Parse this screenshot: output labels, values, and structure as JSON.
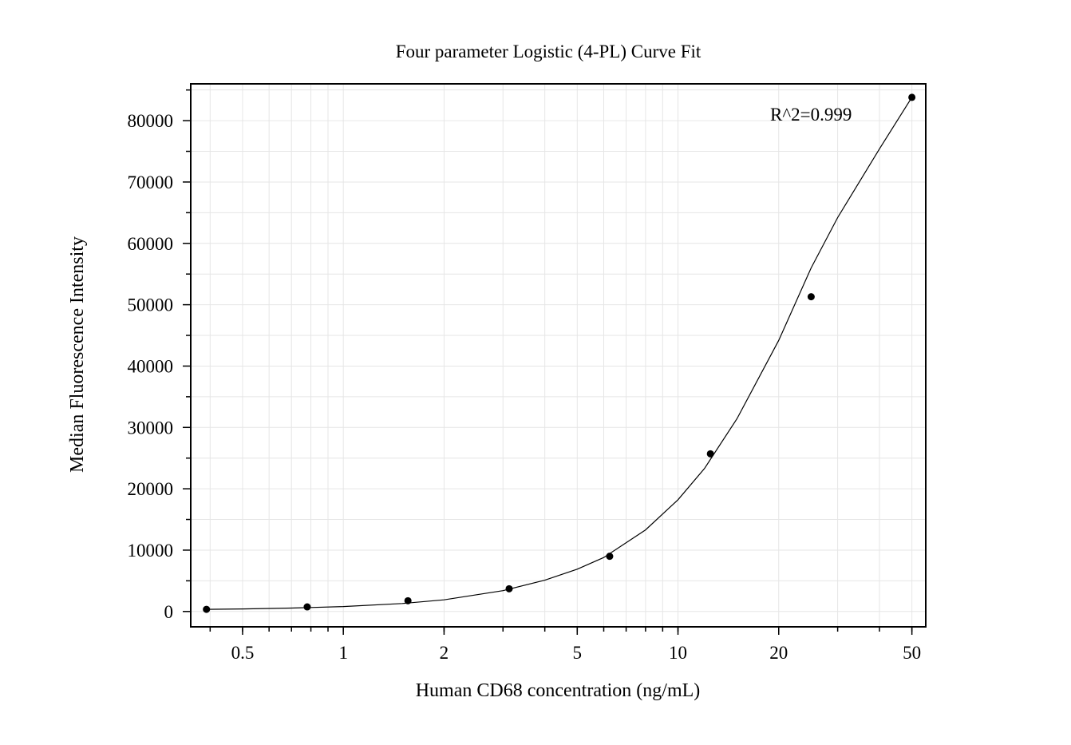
{
  "chart_data": {
    "type": "scatter",
    "title": "Four parameter Logistic (4-PL) Curve Fit",
    "xlabel": "Human CD68 concentration (ng/mL)",
    "ylabel": "Median Fluorescence Intensity",
    "x_scale": "log",
    "xlim": [
      0.35,
      55
    ],
    "ylim": [
      -2500,
      86000
    ],
    "x_ticks": [
      0.5,
      1,
      2,
      5,
      10,
      20,
      50
    ],
    "x_tick_labels": [
      "0.5",
      "1",
      "2",
      "5",
      "10",
      "20",
      "50"
    ],
    "y_ticks": [
      0,
      10000,
      20000,
      30000,
      40000,
      50000,
      60000,
      70000,
      80000
    ],
    "y_tick_labels": [
      "0",
      "10000",
      "20000",
      "30000",
      "40000",
      "50000",
      "60000",
      "70000",
      "80000"
    ],
    "grid": true,
    "annotation": "R^2=0.999",
    "series": [
      {
        "marker": "circle",
        "color": "#000000",
        "x": [
          0.39,
          0.78,
          1.56,
          3.13,
          6.25,
          12.5,
          25,
          50
        ],
        "y": [
          350,
          750,
          1750,
          3700,
          9000,
          25700,
          51300,
          83800
        ]
      }
    ],
    "fit_curve": {
      "model": "4-PL",
      "color": "#000000",
      "x": [
        0.39,
        0.5,
        0.7,
        1,
        1.5,
        2,
        3,
        4,
        5,
        6,
        8,
        10,
        12,
        15,
        20,
        25,
        30,
        40,
        50
      ],
      "y": [
        350,
        420,
        560,
        800,
        1300,
        1900,
        3400,
        5100,
        6900,
        8800,
        13300,
        18200,
        23300,
        31400,
        44200,
        56000,
        64200,
        75400,
        83800
      ]
    }
  }
}
